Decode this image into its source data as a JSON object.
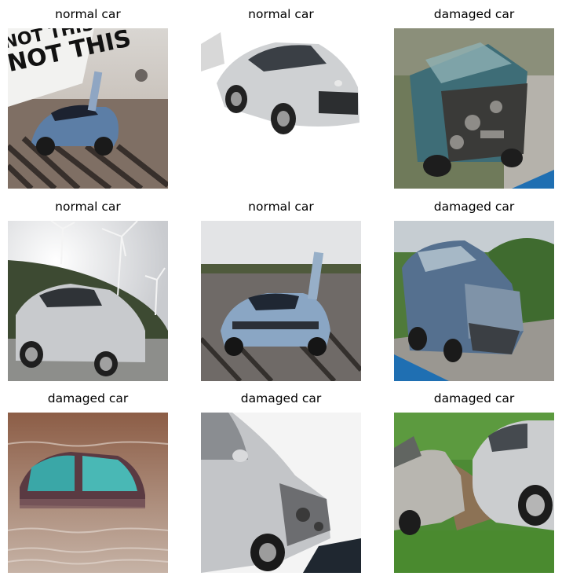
{
  "grid": {
    "cells": [
      {
        "title": "normal car",
        "subject": "blue-supercar-doors-open"
      },
      {
        "title": "normal car",
        "subject": "silver-sedan-white-background"
      },
      {
        "title": "damaged car",
        "subject": "wrecked-teal-car-front"
      },
      {
        "title": "normal car",
        "subject": "silver-hatchback-wind-turbines"
      },
      {
        "title": "normal car",
        "subject": "blue-supercar-rear-view"
      },
      {
        "title": "damaged car",
        "subject": "crashed-blue-minivan"
      },
      {
        "title": "damaged car",
        "subject": "flooded-car-in-water"
      },
      {
        "title": "damaged car",
        "subject": "silver-car-damaged-front"
      },
      {
        "title": "damaged car",
        "subject": "two-silver-cars-collision"
      }
    ]
  }
}
